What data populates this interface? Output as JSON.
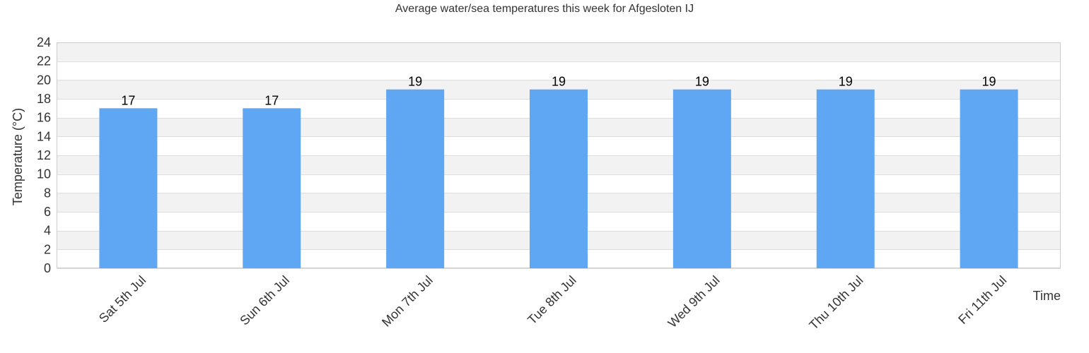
{
  "chart_data": {
    "type": "bar",
    "title": "Average water/sea temperatures this week for Afgesloten IJ",
    "xlabel": "Time",
    "ylabel": "Temperature (°C)",
    "categories": [
      "Sat 5th Jul",
      "Sun 6th Jul",
      "Mon 7th Jul",
      "Tue 8th Jul",
      "Wed 9th Jul",
      "Thu 10th Jul",
      "Fri 11th Jul"
    ],
    "values": [
      17,
      17,
      19,
      19,
      19,
      19,
      19
    ],
    "data_labels": [
      "17",
      "17",
      "19",
      "19",
      "19",
      "19",
      "19"
    ],
    "ylim": [
      0,
      24
    ],
    "yticks": [
      0,
      2,
      4,
      6,
      8,
      10,
      12,
      14,
      16,
      18,
      20,
      22,
      24
    ],
    "grid": true,
    "legend": "none",
    "colors": {
      "bar": "#60a7f3",
      "band_alt": "#f2f2f2",
      "grid": "#dddddd",
      "plot_border": "#cccccc",
      "text": "#333333"
    }
  }
}
